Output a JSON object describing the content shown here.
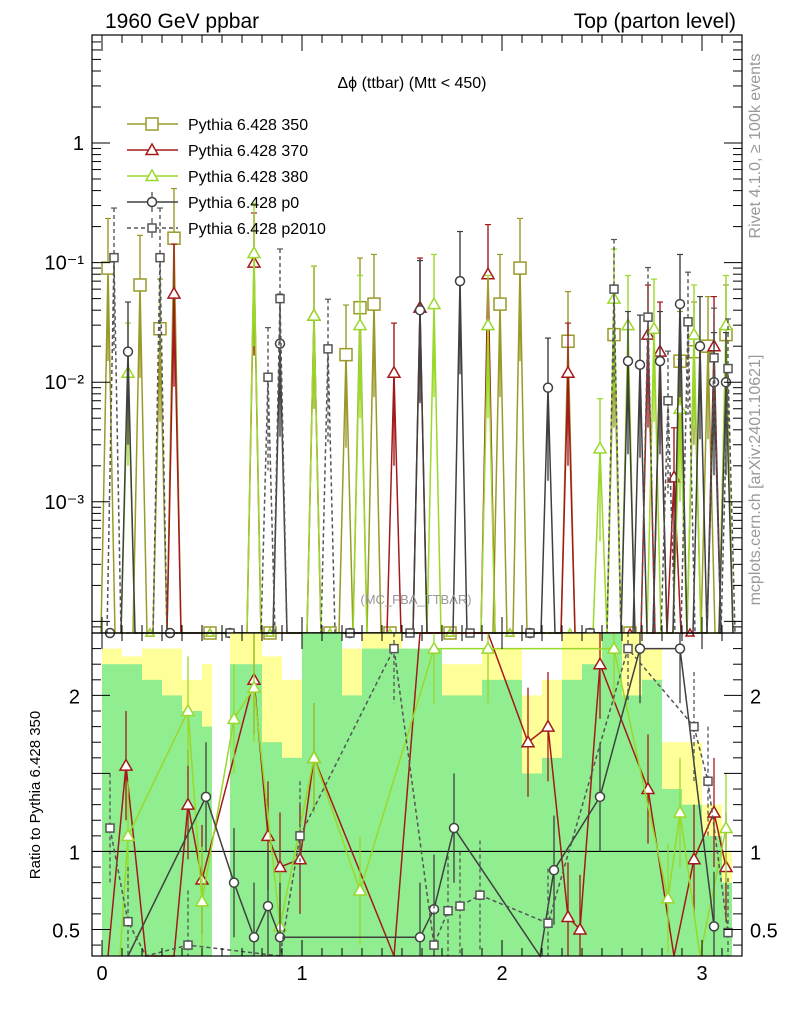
{
  "header": {
    "left": "1960 GeV ppbar",
    "right": "Top (parton level)"
  },
  "side_labels": {
    "rivet": "Rivet 4.1.0, ≥ 100k events",
    "mcplots": "mcplots.cern.ch [arXiv:2401.10621]"
  },
  "watermark": "(MC_FBA_TTBAR)",
  "chart_data": [
    {
      "panel": "main",
      "type": "line",
      "title": "Δϕ (ttbar) (Mtt < 450)",
      "yscale": "log",
      "ylim": [
        8e-05,
        8
      ],
      "xlim": [
        -0.05,
        3.2
      ],
      "yticks": [
        {
          "v": 1,
          "label": "1"
        },
        {
          "v": 0.1,
          "label": "10⁻¹"
        },
        {
          "v": 0.01,
          "label": "10⁻²"
        },
        {
          "v": 0.001,
          "label": "10⁻³"
        }
      ],
      "legend_position": "top-left",
      "series": [
        {
          "name": "Pythia 6.428 350",
          "color": "#9a9a2a",
          "marker": "square",
          "dash": "",
          "points": [
            [
              0.03,
              0.09
            ],
            [
              0.19,
              0.065
            ],
            [
              0.29,
              0.028
            ],
            [
              0.36,
              0.16
            ],
            [
              1.22,
              0.017
            ],
            [
              1.29,
              0.042
            ],
            [
              1.36,
              0.045
            ],
            [
              1.99,
              0.045
            ],
            [
              2.09,
              0.09
            ],
            [
              2.33,
              0.022
            ],
            [
              2.56,
              0.025
            ],
            [
              2.89,
              0.015
            ],
            [
              2.96,
              0.018
            ],
            [
              3.03,
              0.02
            ],
            [
              3.12,
              0.025
            ]
          ]
        },
        {
          "name": "Pythia 6.428 370",
          "color": "#a31a1a",
          "marker": "triangle",
          "dash": "",
          "points": [
            [
              0.36,
              0.055
            ],
            [
              0.76,
              0.1
            ],
            [
              1.06,
              0.036
            ],
            [
              1.46,
              0.012
            ],
            [
              1.59,
              0.042
            ],
            [
              1.93,
              0.08
            ],
            [
              2.33,
              0.012
            ],
            [
              2.73,
              0.025
            ],
            [
              2.79,
              0.018
            ],
            [
              2.86,
              0.0016
            ],
            [
              3.06,
              0.02
            ]
          ]
        },
        {
          "name": "Pythia 6.428 380",
          "color": "#9ad82a",
          "marker": "triangle",
          "dash": "",
          "points": [
            [
              0.13,
              0.012
            ],
            [
              0.76,
              0.12
            ],
            [
              1.06,
              0.036
            ],
            [
              1.29,
              0.03
            ],
            [
              1.66,
              0.045
            ],
            [
              1.93,
              0.03
            ],
            [
              2.49,
              0.0028
            ],
            [
              2.56,
              0.05
            ],
            [
              2.63,
              0.03
            ],
            [
              2.76,
              0.028
            ],
            [
              2.89,
              0.006
            ],
            [
              2.96,
              0.025
            ],
            [
              3.12,
              0.03
            ]
          ]
        },
        {
          "name": "Pythia 6.428 p0",
          "color": "#404040",
          "marker": "circle",
          "dash": "",
          "points": [
            [
              0.13,
              0.018
            ],
            [
              0.89,
              0.021
            ],
            [
              1.59,
              0.04
            ],
            [
              1.79,
              0.07
            ],
            [
              2.23,
              0.009
            ],
            [
              2.63,
              0.015
            ],
            [
              2.69,
              0.014
            ],
            [
              2.79,
              0.015
            ],
            [
              2.89,
              0.045
            ],
            [
              2.99,
              0.02
            ],
            [
              3.06,
              0.01
            ],
            [
              3.12,
              0.01
            ]
          ]
        },
        {
          "name": "Pythia 6.428 p2010",
          "color": "#555555",
          "marker": "opensquare",
          "dash": "4,3",
          "points": [
            [
              0.06,
              0.11
            ],
            [
              0.29,
              0.11
            ],
            [
              0.83,
              0.011
            ],
            [
              0.89,
              0.05
            ],
            [
              1.13,
              0.019
            ],
            [
              2.56,
              0.06
            ],
            [
              2.73,
              0.035
            ],
            [
              2.83,
              0.007
            ],
            [
              2.93,
              0.032
            ],
            [
              3.06,
              0.016
            ],
            [
              3.13,
              0.013
            ]
          ]
        }
      ]
    },
    {
      "panel": "ratio",
      "type": "line",
      "ylabel": "Ratio to Pythia 6.428 350",
      "yscale": "linear",
      "ylim": [
        0.33,
        2.4
      ],
      "xlim": [
        -0.05,
        3.2
      ],
      "reference": 1,
      "yticks": [
        {
          "v": 0.5,
          "label": "0.5"
        },
        {
          "v": 1,
          "label": "1"
        },
        {
          "v": 2,
          "label": "2"
        }
      ],
      "xticks": [
        {
          "v": 0,
          "label": "0"
        },
        {
          "v": 1,
          "label": "1"
        },
        {
          "v": 2,
          "label": "2"
        },
        {
          "v": 3,
          "label": "3"
        }
      ],
      "bands": [
        {
          "x0": 0.0,
          "x1": 0.1,
          "y68": [
            0.3,
            2.2
          ],
          "y95": [
            0.3,
            2.3
          ]
        },
        {
          "x0": 0.1,
          "x1": 0.2,
          "y68": [
            0.3,
            2.2
          ],
          "y95": [
            0.3,
            2.25
          ]
        },
        {
          "x0": 0.2,
          "x1": 0.3,
          "y68": [
            0.3,
            2.1
          ],
          "y95": [
            0.3,
            2.3
          ]
        },
        {
          "x0": 0.3,
          "x1": 0.4,
          "y68": [
            0.3,
            2.0
          ],
          "y95": [
            0.3,
            2.3
          ]
        },
        {
          "x0": 0.4,
          "x1": 0.5,
          "y68": [
            0.3,
            1.9
          ],
          "y95": [
            0.3,
            2.1
          ]
        },
        {
          "x0": 0.5,
          "x1": 0.55,
          "y68": [
            0.3,
            1.8
          ],
          "y95": [
            0.3,
            2.2
          ]
        },
        {
          "x0": 0.64,
          "x1": 0.8,
          "y68": [
            0.3,
            2.2
          ],
          "y95": [
            0.3,
            2.4
          ]
        },
        {
          "x0": 0.8,
          "x1": 0.9,
          "y68": [
            0.3,
            1.7
          ],
          "y95": [
            0.3,
            2.25
          ]
        },
        {
          "x0": 0.9,
          "x1": 1.0,
          "y68": [
            0.3,
            1.6
          ],
          "y95": [
            0.3,
            2.1
          ]
        },
        {
          "x0": 1.0,
          "x1": 1.2,
          "y68": [
            0.3,
            2.4
          ],
          "y95": [
            0.3,
            2.4
          ]
        },
        {
          "x0": 1.2,
          "x1": 1.3,
          "y68": [
            0.3,
            2.0
          ],
          "y95": [
            0.3,
            2.3
          ]
        },
        {
          "x0": 1.3,
          "x1": 1.5,
          "y68": [
            0.3,
            2.3
          ],
          "y95": [
            0.3,
            2.4
          ]
        },
        {
          "x0": 1.5,
          "x1": 1.7,
          "y68": [
            0.3,
            2.3
          ],
          "y95": [
            0.3,
            2.3
          ]
        },
        {
          "x0": 1.7,
          "x1": 1.9,
          "y68": [
            0.3,
            2.0
          ],
          "y95": [
            0.3,
            2.2
          ]
        },
        {
          "x0": 1.9,
          "x1": 2.1,
          "y68": [
            0.3,
            2.1
          ],
          "y95": [
            0.3,
            2.3
          ]
        },
        {
          "x0": 2.1,
          "x1": 2.2,
          "y68": [
            0.3,
            1.5
          ],
          "y95": [
            0.3,
            2.0
          ]
        },
        {
          "x0": 2.2,
          "x1": 2.3,
          "y68": [
            0.3,
            1.6
          ],
          "y95": [
            0.3,
            2.1
          ]
        },
        {
          "x0": 2.3,
          "x1": 2.4,
          "y68": [
            0.3,
            2.1
          ],
          "y95": [
            0.3,
            2.4
          ]
        },
        {
          "x0": 2.4,
          "x1": 2.5,
          "y68": [
            0.3,
            2.2
          ],
          "y95": [
            0.3,
            2.4
          ]
        },
        {
          "x0": 2.5,
          "x1": 2.6,
          "y68": [
            0.3,
            2.4
          ],
          "y95": [
            0.3,
            2.4
          ]
        },
        {
          "x0": 2.6,
          "x1": 2.7,
          "y68": [
            0.3,
            2.0
          ],
          "y95": [
            0.3,
            2.4
          ]
        },
        {
          "x0": 2.7,
          "x1": 2.8,
          "y68": [
            0.3,
            2.1
          ],
          "y95": [
            0.3,
            2.3
          ]
        },
        {
          "x0": 2.8,
          "x1": 2.9,
          "y68": [
            0.3,
            1.4
          ],
          "y95": [
            0.3,
            1.7
          ]
        },
        {
          "x0": 2.9,
          "x1": 3.0,
          "y68": [
            0.3,
            1.3
          ],
          "y95": [
            0.3,
            1.7
          ]
        },
        {
          "x0": 3.0,
          "x1": 3.1,
          "y68": [
            0.3,
            1.1
          ],
          "y95": [
            0.3,
            1.3
          ]
        },
        {
          "x0": 3.1,
          "x1": 3.15,
          "y68": [
            0.3,
            0.8
          ],
          "y95": [
            0.3,
            1.0
          ]
        }
      ],
      "series": [
        {
          "name": "Pythia 6.428 370",
          "color": "#a31a1a",
          "marker": "triangle",
          "dash": "",
          "points": [
            [
              0.03,
              0.2
            ],
            [
              0.12,
              1.55
            ],
            [
              0.22,
              0.2
            ],
            [
              0.36,
              0.2
            ],
            [
              0.43,
              1.3
            ],
            [
              0.5,
              0.82
            ],
            [
              0.76,
              2.1
            ],
            [
              0.83,
              1.1
            ],
            [
              0.89,
              0.9
            ],
            [
              0.99,
              0.95
            ],
            [
              1.06,
              1.6
            ],
            [
              1.46,
              0.2
            ],
            [
              1.59,
              2.4
            ],
            [
              1.93,
              2.4
            ],
            [
              2.13,
              1.7
            ],
            [
              2.23,
              1.8
            ],
            [
              2.33,
              0.58
            ],
            [
              2.39,
              0.5
            ],
            [
              2.49,
              2.2
            ],
            [
              2.73,
              1.4
            ],
            [
              2.86,
              0.2
            ],
            [
              2.96,
              0.95
            ],
            [
              3.06,
              1.25
            ],
            [
              3.12,
              0.9
            ]
          ]
        },
        {
          "name": "Pythia 6.428 380",
          "color": "#9ad82a",
          "marker": "triangle",
          "dash": "",
          "points": [
            [
              0.09,
              0.2
            ],
            [
              0.13,
              1.1
            ],
            [
              0.43,
              1.9
            ],
            [
              0.5,
              0.68
            ],
            [
              0.66,
              1.85
            ],
            [
              0.76,
              2.05
            ],
            [
              0.89,
              0.52
            ],
            [
              1.06,
              1.6
            ],
            [
              1.29,
              0.75
            ],
            [
              1.66,
              2.3
            ],
            [
              1.93,
              2.3
            ],
            [
              2.56,
              2.3
            ],
            [
              2.83,
              0.7
            ],
            [
              2.89,
              1.25
            ],
            [
              2.99,
              0.3
            ],
            [
              3.12,
              1.15
            ]
          ]
        },
        {
          "name": "Pythia 6.428 p0",
          "color": "#404040",
          "marker": "circle",
          "dash": "",
          "points": [
            [
              0.13,
              0.2
            ],
            [
              0.52,
              1.35
            ],
            [
              0.66,
              0.8
            ],
            [
              0.76,
              0.45
            ],
            [
              0.83,
              0.65
            ],
            [
              0.89,
              0.45
            ],
            [
              1.59,
              0.45
            ],
            [
              1.66,
              0.63
            ],
            [
              1.76,
              1.15
            ],
            [
              2.19,
              0.3
            ],
            [
              2.26,
              0.88
            ],
            [
              2.49,
              1.35
            ],
            [
              2.69,
              2.3
            ],
            [
              2.89,
              2.3
            ],
            [
              3.06,
              0.52
            ]
          ]
        },
        {
          "name": "Pythia 6.428 p2010",
          "color": "#555555",
          "marker": "opensquare",
          "dash": "4,3",
          "points": [
            [
              0.04,
              1.15
            ],
            [
              0.13,
              0.55
            ],
            [
              0.22,
              0.2
            ],
            [
              0.43,
              0.4
            ],
            [
              0.89,
              0.3
            ],
            [
              0.99,
              1.1
            ],
            [
              1.46,
              2.3
            ],
            [
              1.66,
              0.4
            ],
            [
              1.73,
              0.62
            ],
            [
              1.79,
              0.65
            ],
            [
              1.89,
              0.72
            ],
            [
              2.23,
              0.54
            ],
            [
              2.63,
              2.3
            ],
            [
              2.96,
              1.8
            ],
            [
              3.03,
              1.45
            ],
            [
              3.13,
              0.48
            ]
          ]
        }
      ]
    }
  ]
}
